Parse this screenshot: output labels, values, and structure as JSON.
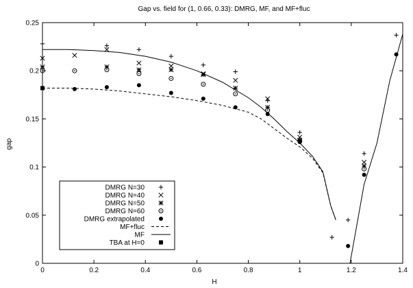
{
  "chart_data": {
    "type": "scatter",
    "title": "Gap vs. field for (1, 0.66, 0.33): DMRG, MF, and MF+fluc",
    "xlabel": "H",
    "ylabel": "gap",
    "xlim": [
      0,
      1.4
    ],
    "ylim": [
      0,
      0.25
    ],
    "x_ticks": [
      0,
      0.2,
      0.4,
      0.6,
      0.8,
      1,
      1.2,
      1.4
    ],
    "x_tick_labels": [
      "0",
      "0.2",
      "0.4",
      "0.6",
      "0.8",
      "1",
      "1.2",
      "1.4"
    ],
    "y_ticks": [
      0,
      0.05,
      0.1,
      0.15,
      0.2,
      0.25
    ],
    "y_tick_labels": [
      "0",
      "0.05",
      "0.1",
      "0.15",
      "0.2",
      "0.25"
    ],
    "grid": false,
    "legend_position": "bottom-left",
    "series": [
      {
        "name": "DMRG N=30",
        "kind": "scatter",
        "marker": "plus",
        "points": [
          [
            0,
            0.228
          ],
          [
            0.25,
            0.226
          ],
          [
            0.375,
            0.222
          ],
          [
            0.5,
            0.215
          ],
          [
            0.625,
            0.206
          ],
          [
            0.75,
            0.199
          ],
          [
            0.875,
            0.169
          ],
          [
            1.0,
            0.136
          ],
          [
            1.125,
            0.027
          ],
          [
            1.1875,
            0.045
          ],
          [
            1.25,
            0.114
          ],
          [
            1.375,
            0.237
          ]
        ]
      },
      {
        "name": "DMRG N=40",
        "kind": "scatter",
        "marker": "cross",
        "points": [
          [
            0,
            0.213
          ],
          [
            0.125,
            0.216
          ],
          [
            0.25,
            0.222
          ],
          [
            0.375,
            0.208
          ],
          [
            0.5,
            0.205
          ],
          [
            0.625,
            0.197
          ],
          [
            0.75,
            0.19
          ],
          [
            0.875,
            0.171
          ],
          [
            1.0,
            0.131
          ],
          [
            1.25,
            0.105
          ]
        ]
      },
      {
        "name": "DMRG N=50",
        "kind": "scatter",
        "marker": "asterisk",
        "points": [
          [
            0,
            0.204
          ],
          [
            0.25,
            0.204
          ],
          [
            0.375,
            0.201
          ],
          [
            0.5,
            0.201
          ],
          [
            0.625,
            0.196
          ],
          [
            0.75,
            0.182
          ],
          [
            0.875,
            0.162
          ],
          [
            1.0,
            0.128
          ],
          [
            1.25,
            0.101
          ]
        ]
      },
      {
        "name": "DMRG N=60",
        "kind": "scatter",
        "marker": "circle",
        "points": [
          [
            0,
            0.2
          ],
          [
            0.125,
            0.2
          ],
          [
            0.25,
            0.201
          ],
          [
            0.375,
            0.197
          ],
          [
            0.5,
            0.192
          ],
          [
            0.625,
            0.186
          ],
          [
            0.75,
            0.176
          ],
          [
            0.875,
            0.159
          ],
          [
            1.0,
            0.127
          ],
          [
            1.25,
            0.098
          ]
        ]
      },
      {
        "name": "DMRG extrapolated",
        "kind": "scatter",
        "marker": "dot",
        "points": [
          [
            0.125,
            0.181
          ],
          [
            0.25,
            0.183
          ],
          [
            0.375,
            0.185
          ],
          [
            0.5,
            0.177
          ],
          [
            0.625,
            0.171
          ],
          [
            0.75,
            0.162
          ],
          [
            0.875,
            0.155
          ],
          [
            1.0,
            0.126
          ],
          [
            1.1875,
            0.018
          ],
          [
            1.25,
            0.092
          ],
          [
            1.375,
            0.217
          ]
        ]
      },
      {
        "name": "MF+fluc",
        "kind": "line",
        "dash": "dashed",
        "points": [
          [
            0,
            0.182
          ],
          [
            0.1,
            0.182
          ],
          [
            0.2,
            0.181
          ],
          [
            0.3,
            0.179
          ],
          [
            0.4,
            0.176
          ],
          [
            0.5,
            0.173
          ],
          [
            0.6,
            0.169
          ],
          [
            0.7,
            0.164
          ],
          [
            0.8,
            0.157
          ],
          [
            0.85,
            0.15
          ],
          [
            0.9,
            0.14
          ],
          [
            0.95,
            0.13
          ],
          [
            1.0,
            0.121
          ],
          [
            1.05,
            0.109
          ],
          [
            1.09,
            0.094
          ],
          [
            1.12,
            0.06
          ],
          [
            1.14,
            0.045
          ]
        ]
      },
      {
        "name": "MF",
        "kind": "line",
        "dash": "solid",
        "points": [
          [
            0,
            0.222
          ],
          [
            0.1,
            0.222
          ],
          [
            0.2,
            0.221
          ],
          [
            0.3,
            0.219
          ],
          [
            0.4,
            0.215
          ],
          [
            0.5,
            0.209
          ],
          [
            0.6,
            0.2
          ],
          [
            0.7,
            0.188
          ],
          [
            0.8,
            0.172
          ],
          [
            0.85,
            0.162
          ],
          [
            0.9,
            0.15
          ],
          [
            0.95,
            0.137
          ],
          [
            1.0,
            0.125
          ],
          [
            1.05,
            0.111
          ],
          [
            1.09,
            0.095
          ],
          [
            1.12,
            0.06
          ],
          [
            1.14,
            0.045
          ]
        ]
      },
      {
        "name": "MF (upper branch)",
        "kind": "line",
        "dash": "solid",
        "in_legend": false,
        "points": [
          [
            1.195,
            0.0
          ],
          [
            1.25,
            0.082
          ],
          [
            1.3,
            0.125
          ],
          [
            1.35,
            0.19
          ],
          [
            1.4,
            0.238
          ]
        ]
      },
      {
        "name": "TBA at H=0",
        "kind": "scatter",
        "marker": "square",
        "points": [
          [
            0,
            0.182
          ]
        ]
      }
    ]
  }
}
